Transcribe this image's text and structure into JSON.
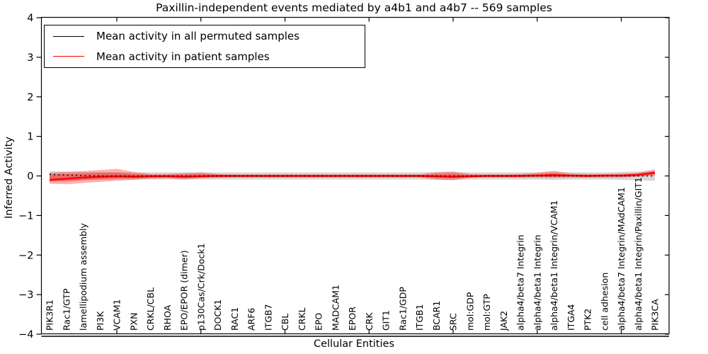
{
  "figure": {
    "title": "Paxillin-independent events mediated by a4b1 and a4b7 -- 569 samples",
    "xlabel": "Cellular Entities",
    "ylabel": "Inferred Activity"
  },
  "legend": {
    "items": [
      {
        "label": "Mean activity in all permuted samples",
        "color": "#000000"
      },
      {
        "label": "Mean activity in patient samples",
        "color": "#ff0000"
      }
    ]
  },
  "colors": {
    "permuted_line": "#000000",
    "patient_line": "#ff0000",
    "patient_band": "#ff0000",
    "permuted_band": "#8c8c8c",
    "axis": "#000000"
  },
  "chart_data": {
    "type": "line",
    "title": "Paxillin-independent events mediated by a4b1 and a4b7 -- 569 samples",
    "xlabel": "Cellular Entities",
    "ylabel": "Inferred Activity",
    "ylim": [
      -4,
      4
    ],
    "yticks": [
      4,
      3,
      2,
      1,
      0,
      -1,
      -2,
      -3,
      -4
    ],
    "xtick_indices": [
      4,
      9,
      14,
      19,
      24,
      29,
      34
    ],
    "grid": false,
    "legend_position": "upper left",
    "categories": [
      "PIK3R1",
      "Rac1/GTP",
      "lamellipodium assembly",
      "PI3K",
      "VCAM1",
      "PXN",
      "CRKL/CBL",
      "RHOA",
      "EPO/EPOR (dimer)",
      "p130Cas/Crk/Dock1",
      "DOCK1",
      "RAC1",
      "ARF6",
      "ITGB7",
      "CBL",
      "CRKL",
      "EPO",
      "MADCAM1",
      "EPOR",
      "CRK",
      "GIT1",
      "Rac1/GDP",
      "ITGB1",
      "BCAR1",
      "SRC",
      "mol:GDP",
      "mol:GTP",
      "JAK2",
      "alpha4/beta7 Integrin",
      "alpha4/beta1 Integrin",
      "alpha4/beta1 Integrin/VCAM1",
      "ITGA4",
      "PTK2",
      "cell adhesion",
      "alpha4/beta7 Integrin/MAdCAM1",
      "alpha4/beta1 Integrin/Paxillin/GIT1",
      "PIK3CA"
    ],
    "series": [
      {
        "name": "Mean activity in all permuted samples",
        "color": "#000000",
        "linestyle": "dotted",
        "values": [
          0.04,
          0.02,
          0.01,
          0,
          0,
          0,
          0,
          0,
          0,
          0,
          0,
          0,
          0,
          0,
          0,
          0,
          0,
          0,
          0,
          0,
          0,
          0,
          0,
          0,
          0,
          0,
          0,
          0,
          0,
          0,
          0,
          0,
          0,
          0,
          0,
          0,
          0
        ]
      },
      {
        "name": "Mean activity in patient samples",
        "color": "#ff0000",
        "linestyle": "solid",
        "values": [
          -0.1,
          -0.07,
          -0.04,
          -0.02,
          -0.01,
          -0.02,
          -0.01,
          -0.01,
          -0.02,
          -0.01,
          0,
          0,
          0,
          0,
          0,
          0,
          0,
          0,
          0,
          0,
          0,
          0,
          0,
          -0.01,
          -0.02,
          -0.01,
          0,
          0,
          0,
          0.01,
          0.02,
          0.01,
          0,
          0.01,
          0.01,
          0.03,
          0.08
        ]
      }
    ],
    "bands": [
      {
        "name": "permuted samples range",
        "color": "#8c8c8c",
        "opacity": 0.35,
        "upper": [
          0.12,
          0.11,
          0.1,
          0.1,
          0.09,
          0.09,
          0.09,
          0.09,
          0.09,
          0.09,
          0.09,
          0.09,
          0.09,
          0.09,
          0.09,
          0.09,
          0.09,
          0.09,
          0.09,
          0.09,
          0.09,
          0.09,
          0.09,
          0.1,
          0.1,
          0.09,
          0.09,
          0.09,
          0.09,
          0.09,
          0.1,
          0.09,
          0.09,
          0.09,
          0.1,
          0.11,
          0.12
        ],
        "lower": [
          -0.12,
          -0.11,
          -0.1,
          -0.1,
          -0.09,
          -0.09,
          -0.09,
          -0.09,
          -0.09,
          -0.09,
          -0.09,
          -0.09,
          -0.09,
          -0.09,
          -0.09,
          -0.09,
          -0.09,
          -0.09,
          -0.09,
          -0.09,
          -0.09,
          -0.09,
          -0.09,
          -0.1,
          -0.1,
          -0.09,
          -0.09,
          -0.09,
          -0.09,
          -0.09,
          -0.1,
          -0.09,
          -0.09,
          -0.09,
          -0.1,
          -0.11,
          -0.12
        ]
      },
      {
        "name": "patient samples range",
        "color": "#ff0000",
        "opacity": 0.3,
        "upper": [
          0.08,
          0.1,
          0.12,
          0.15,
          0.18,
          0.1,
          0.05,
          0.05,
          0.07,
          0.09,
          0.05,
          0.04,
          0.04,
          0.04,
          0.04,
          0.04,
          0.04,
          0.04,
          0.04,
          0.04,
          0.04,
          0.04,
          0.04,
          0.09,
          0.11,
          0.05,
          0.04,
          0.04,
          0.05,
          0.08,
          0.13,
          0.06,
          0.05,
          0.05,
          0.06,
          0.08,
          0.17
        ],
        "lower": [
          -0.2,
          -0.21,
          -0.18,
          -0.15,
          -0.12,
          -0.1,
          -0.07,
          -0.06,
          -0.09,
          -0.06,
          -0.05,
          -0.04,
          -0.04,
          -0.04,
          -0.04,
          -0.04,
          -0.04,
          -0.04,
          -0.04,
          -0.04,
          -0.04,
          -0.04,
          -0.04,
          -0.09,
          -0.11,
          -0.05,
          -0.04,
          -0.04,
          -0.04,
          -0.04,
          -0.05,
          -0.04,
          -0.04,
          -0.04,
          -0.04,
          -0.02,
          0.01
        ]
      },
      {
        "name": "patient samples inner range",
        "color": "#ff0000",
        "opacity": 0.3,
        "upper": [
          0.04,
          0.05,
          0.06,
          0.08,
          0.09,
          0.05,
          0.03,
          0.03,
          0.04,
          0.05,
          0.03,
          0.02,
          0.02,
          0.02,
          0.02,
          0.02,
          0.02,
          0.02,
          0.02,
          0.02,
          0.02,
          0.02,
          0.02,
          0.05,
          0.06,
          0.03,
          0.02,
          0.02,
          0.03,
          0.04,
          0.07,
          0.03,
          0.03,
          0.03,
          0.03,
          0.04,
          0.12
        ],
        "lower": [
          -0.15,
          -0.14,
          -0.11,
          -0.08,
          -0.06,
          -0.06,
          -0.04,
          -0.03,
          -0.05,
          -0.03,
          -0.03,
          -0.02,
          -0.02,
          -0.02,
          -0.02,
          -0.02,
          -0.02,
          -0.02,
          -0.02,
          -0.02,
          -0.02,
          -0.02,
          -0.02,
          -0.05,
          -0.06,
          -0.03,
          -0.02,
          -0.02,
          -0.02,
          -0.02,
          -0.03,
          -0.02,
          -0.02,
          -0.02,
          -0.02,
          -0.01,
          0.04
        ]
      }
    ]
  }
}
